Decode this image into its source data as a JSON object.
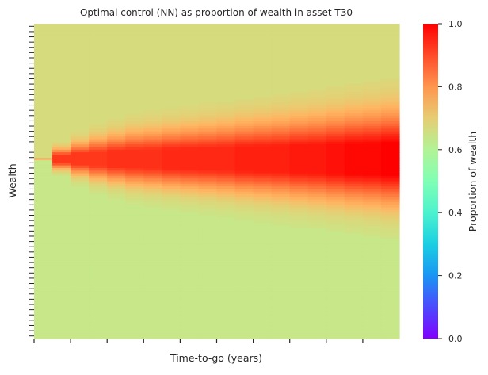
{
  "chart_data": {
    "type": "heatmap",
    "title": "Optimal control (NN) as proportion of wealth in asset T30",
    "xlabel": "Time-to-go (years)",
    "ylabel": "Wealth",
    "x_tick_count": 10,
    "y_tick_count": 60,
    "x_tick_labels": [],
    "y_tick_labels": [],
    "colormap": "rainbow",
    "colorbar": {
      "label": "Proportion of wealth",
      "range": [
        0.0,
        1.0
      ],
      "ticks": [
        "0.0",
        "0.2",
        "0.4",
        "0.6",
        "0.8",
        "1.0"
      ],
      "placement": "right"
    },
    "background_value_upper": 0.67,
    "background_value_lower": 0.64,
    "columns": 20,
    "band": {
      "description_values": "per time column: band half-width (in wealth rows) and peak proportion",
      "center_row": 0.43,
      "steps": [
        {
          "col": 0,
          "width": 0.0,
          "peak": 0.85
        },
        {
          "col": 1,
          "width": 0.035,
          "peak": 0.93
        },
        {
          "col": 2,
          "width": 0.055,
          "peak": 0.93
        },
        {
          "col": 3,
          "width": 0.07,
          "peak": 0.93
        },
        {
          "col": 4,
          "width": 0.08,
          "peak": 0.94
        },
        {
          "col": 5,
          "width": 0.09,
          "peak": 0.94
        },
        {
          "col": 6,
          "width": 0.095,
          "peak": 0.94
        },
        {
          "col": 7,
          "width": 0.1,
          "peak": 0.95
        },
        {
          "col": 8,
          "width": 0.105,
          "peak": 0.95
        },
        {
          "col": 9,
          "width": 0.11,
          "peak": 0.95
        },
        {
          "col": 10,
          "width": 0.115,
          "peak": 0.95
        },
        {
          "col": 11,
          "width": 0.12,
          "peak": 0.96
        },
        {
          "col": 12,
          "width": 0.125,
          "peak": 0.96
        },
        {
          "col": 13,
          "width": 0.13,
          "peak": 0.96
        },
        {
          "col": 14,
          "width": 0.135,
          "peak": 0.97
        },
        {
          "col": 15,
          "width": 0.14,
          "peak": 0.97
        },
        {
          "col": 16,
          "width": 0.145,
          "peak": 0.98
        },
        {
          "col": 17,
          "width": 0.15,
          "peak": 0.99
        },
        {
          "col": 18,
          "width": 0.155,
          "peak": 0.99
        },
        {
          "col": 19,
          "width": 0.16,
          "peak": 1.0
        }
      ]
    },
    "grid": false
  },
  "colors": {
    "text": "#262626",
    "tick": "#262626"
  }
}
